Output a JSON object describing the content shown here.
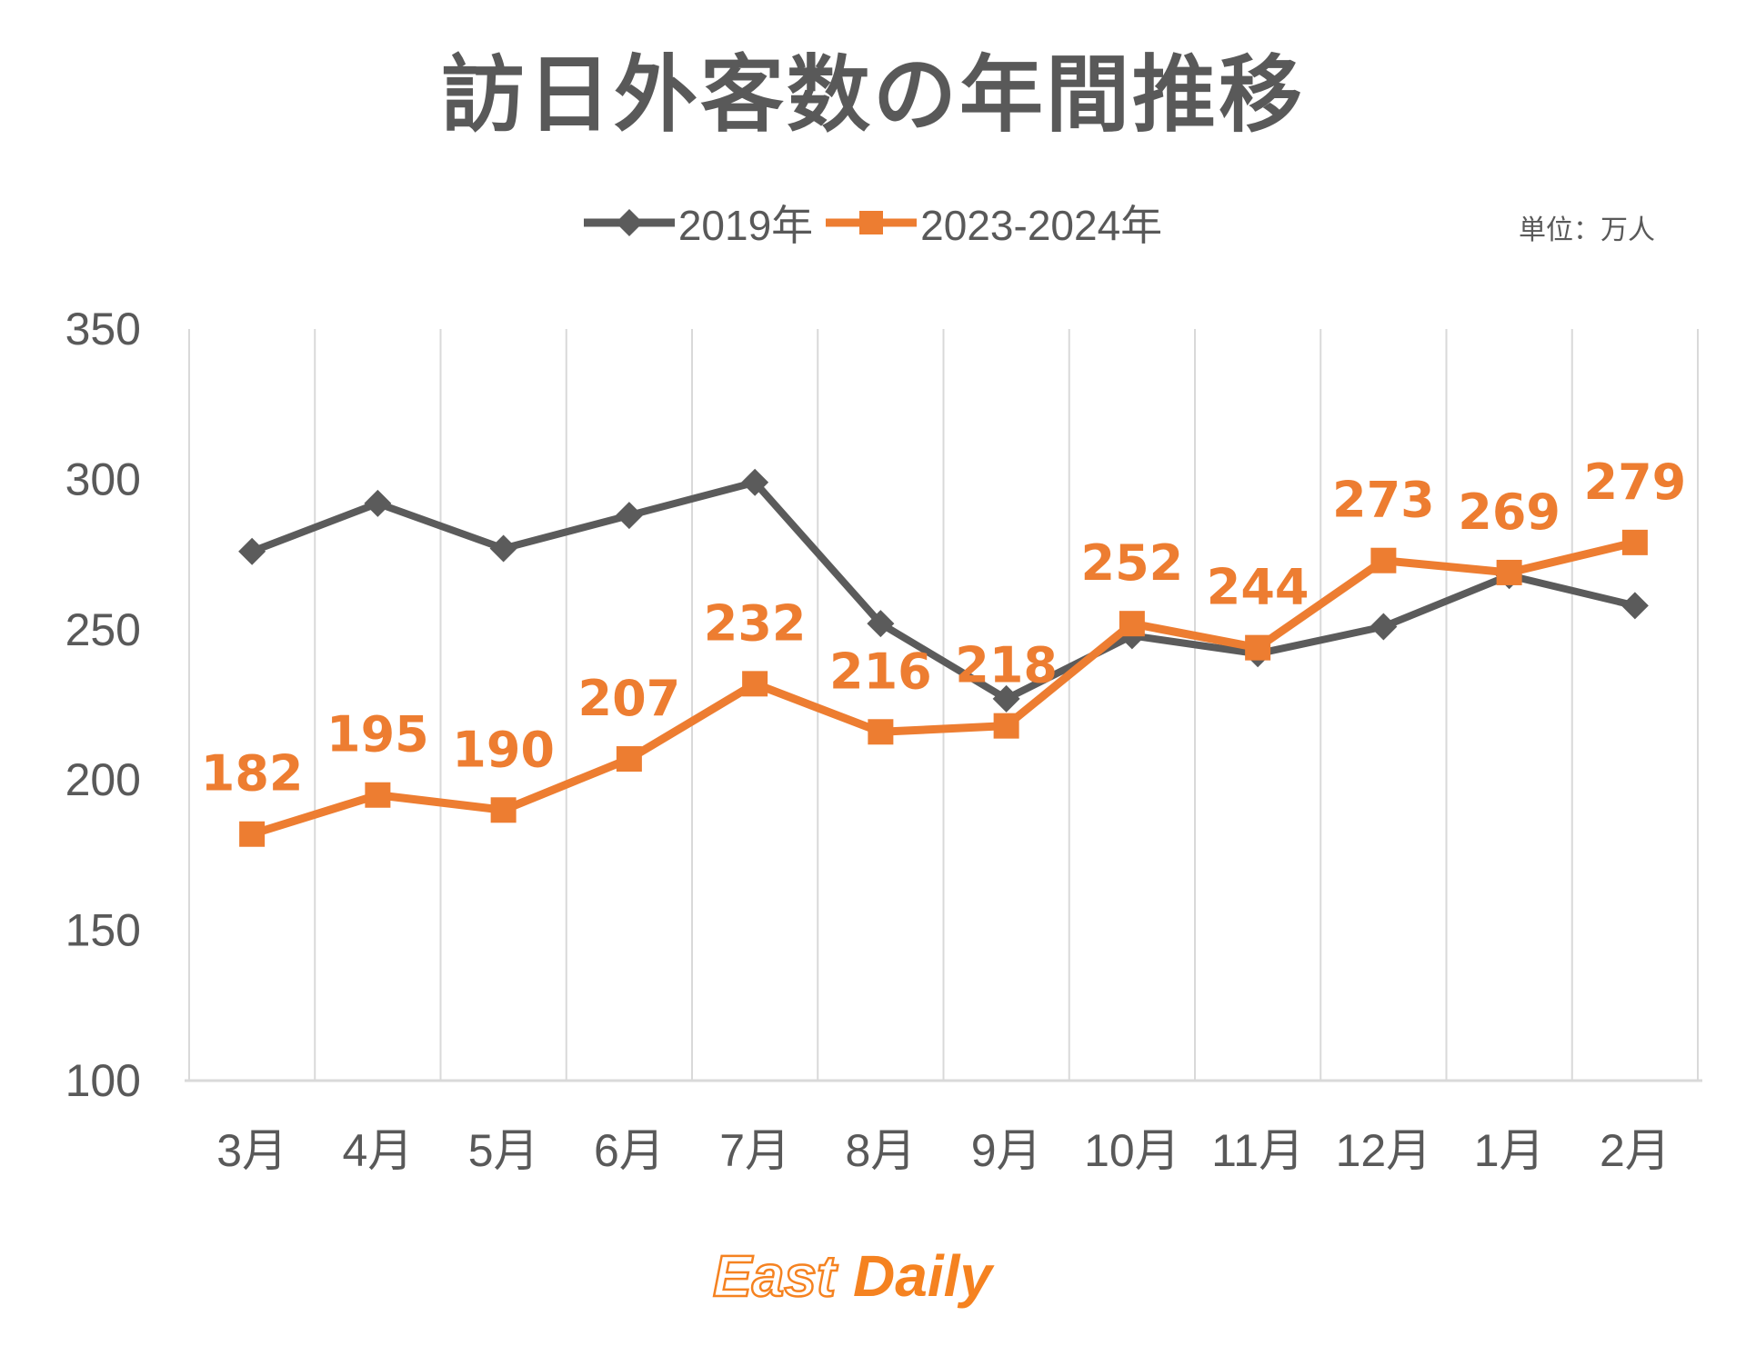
{
  "title": "訪日外客数の年間推移",
  "unit_label": "単位：万人",
  "legend": [
    {
      "name": "2019年",
      "color": "#5B5B5B",
      "marker": "diamond"
    },
    {
      "name": "2023-2024年",
      "color": "#ED7D31",
      "marker": "square"
    }
  ],
  "logo": {
    "part1": "East",
    "part2": "Daily"
  },
  "colors": {
    "accent_orange": "#ED7D31",
    "series_gray": "#5B5B5B",
    "axis_text": "#595959",
    "gridline": "#D9D9D9",
    "logo_orange": "#F58220",
    "background": "#FFFFFF"
  },
  "chart_data": {
    "type": "line",
    "title": "訪日外客数の年間推移",
    "unit": "万人",
    "categories": [
      "3月",
      "4月",
      "5月",
      "6月",
      "7月",
      "8月",
      "9月",
      "10月",
      "11月",
      "12月",
      "1月",
      "2月"
    ],
    "series": [
      {
        "name": "2019年",
        "color": "#5B5B5B",
        "marker": "diamond",
        "show_labels": false,
        "values": [
          276,
          292,
          277,
          288,
          299,
          252,
          227,
          248,
          242,
          251,
          268,
          258
        ]
      },
      {
        "name": "2023-2024年",
        "color": "#ED7D31",
        "marker": "square",
        "show_labels": true,
        "values": [
          182,
          195,
          190,
          207,
          232,
          216,
          218,
          252,
          244,
          273,
          269,
          279
        ]
      }
    ],
    "ylim": [
      100,
      350
    ],
    "yticks": [
      100,
      150,
      200,
      250,
      300,
      350
    ],
    "grid": "vertical-only",
    "legend_position": "top-center"
  }
}
